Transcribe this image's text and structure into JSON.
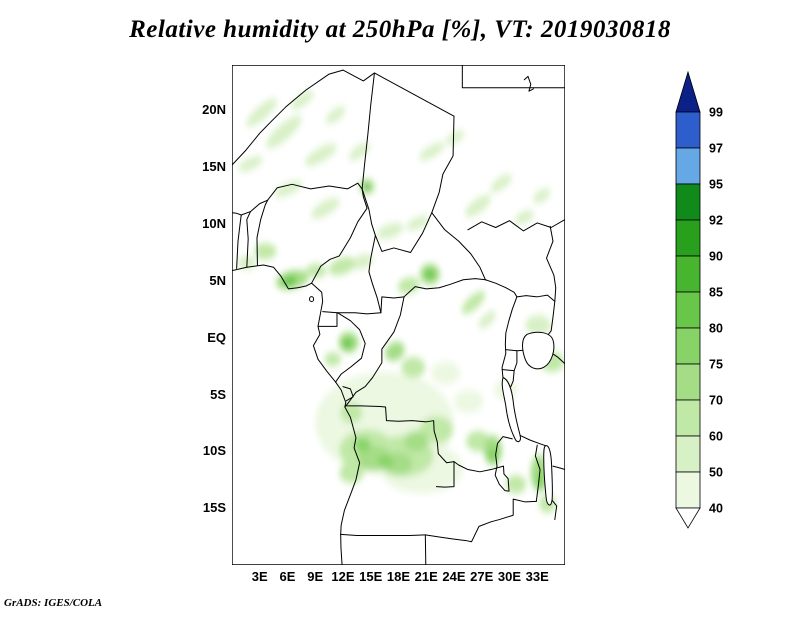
{
  "title": "Relative humidity at 250hPa [%], VT: 2019030818",
  "credit": "GrADS: IGES/COLA",
  "chart_data": {
    "type": "heatmap",
    "subtype": "filled-contour-map",
    "variable": "Relative humidity",
    "pressure_level": "250hPa",
    "units": "%",
    "valid_time": "2019030818",
    "legend_position": "right",
    "lon_range": [
      0,
      36
    ],
    "lat_range": [
      -20,
      24
    ],
    "lon_ticks": [
      {
        "label": "3E",
        "deg": 3
      },
      {
        "label": "6E",
        "deg": 6
      },
      {
        "label": "9E",
        "deg": 9
      },
      {
        "label": "12E",
        "deg": 12
      },
      {
        "label": "15E",
        "deg": 15
      },
      {
        "label": "18E",
        "deg": 18
      },
      {
        "label": "21E",
        "deg": 21
      },
      {
        "label": "24E",
        "deg": 24
      },
      {
        "label": "27E",
        "deg": 27
      },
      {
        "label": "30E",
        "deg": 30
      },
      {
        "label": "33E",
        "deg": 33
      }
    ],
    "lat_ticks": [
      {
        "label": "20N",
        "deg": 20
      },
      {
        "label": "15N",
        "deg": 15
      },
      {
        "label": "10N",
        "deg": 10
      },
      {
        "label": "5N",
        "deg": 5
      },
      {
        "label": "EQ",
        "deg": 0
      },
      {
        "label": "5S",
        "deg": -5
      },
      {
        "label": "10S",
        "deg": -10
      },
      {
        "label": "15S",
        "deg": -15
      }
    ],
    "contour_levels": [
      40,
      50,
      60,
      70,
      75,
      80,
      85,
      90,
      92,
      95,
      97,
      99
    ],
    "colorbar_labels_top_to_bottom": [
      "99",
      "97",
      "95",
      "92",
      "90",
      "85",
      "80",
      "75",
      "70",
      "60",
      "50",
      "40"
    ],
    "palette_bottom_to_top": [
      "#ffffff",
      "#ecf8e2",
      "#d8f0c6",
      "#c0e8a6",
      "#a4dd86",
      "#88d368",
      "#68c648",
      "#47b52e",
      "#28a01e",
      "#108a1a",
      "#66a7e6",
      "#2e5ecc",
      "#0b2188"
    ],
    "shaded_regions_format": [
      "lon_deg",
      "lat_deg",
      "rx_deg",
      "ry_deg",
      "rotation_deg",
      "min_rh_percent"
    ],
    "shaded_regions": [
      [
        3.2,
        19.8,
        2.0,
        0.6,
        -35,
        50
      ],
      [
        5.6,
        18.1,
        2.3,
        0.7,
        -35,
        50
      ],
      [
        7.6,
        20.9,
        1.4,
        0.5,
        -30,
        50
      ],
      [
        2.0,
        15.3,
        1.4,
        0.5,
        -20,
        50
      ],
      [
        9.6,
        16.1,
        1.9,
        0.6,
        -25,
        50
      ],
      [
        11.2,
        19.6,
        1.2,
        0.5,
        -30,
        50
      ],
      [
        6.1,
        13.1,
        1.6,
        0.5,
        -20,
        50
      ],
      [
        10.1,
        11.4,
        1.7,
        0.6,
        -25,
        50
      ],
      [
        13.8,
        16.4,
        1.3,
        0.5,
        -30,
        50
      ],
      [
        21.6,
        16.4,
        1.5,
        0.5,
        -25,
        50
      ],
      [
        24.1,
        17.6,
        1.1,
        0.45,
        -25,
        50
      ],
      [
        14.6,
        13.3,
        0.9,
        0.7,
        0,
        60
      ],
      [
        14.6,
        13.3,
        0.42,
        0.33,
        0,
        85
      ],
      [
        17.1,
        9.4,
        1.5,
        0.6,
        -15,
        50
      ],
      [
        20.1,
        10.1,
        1.3,
        0.5,
        -20,
        50
      ],
      [
        26.6,
        11.6,
        1.6,
        0.6,
        -30,
        50
      ],
      [
        29.1,
        13.6,
        1.3,
        0.5,
        -30,
        50
      ],
      [
        31.6,
        10.6,
        1.1,
        0.5,
        -20,
        50
      ],
      [
        33.5,
        12.5,
        1.0,
        0.5,
        -25,
        50
      ],
      [
        3.6,
        7.6,
        1.2,
        0.7,
        0,
        60
      ],
      [
        1.6,
        6.6,
        1.0,
        0.6,
        0,
        50
      ],
      [
        6.5,
        5.1,
        1.8,
        0.8,
        -10,
        70
      ],
      [
        6.2,
        5.0,
        0.8,
        0.45,
        -10,
        80
      ],
      [
        9.1,
        5.9,
        1.1,
        0.6,
        0,
        60
      ],
      [
        11.9,
        6.3,
        1.5,
        0.7,
        -15,
        60
      ],
      [
        14.1,
        6.7,
        1.2,
        0.6,
        -15,
        50
      ],
      [
        19.1,
        4.6,
        1.2,
        0.7,
        -10,
        60
      ],
      [
        21.4,
        5.6,
        1.1,
        0.9,
        0,
        70
      ],
      [
        21.4,
        5.6,
        0.55,
        0.45,
        0,
        80
      ],
      [
        26.1,
        3.1,
        1.5,
        0.6,
        -35,
        60
      ],
      [
        27.6,
        1.6,
        1.1,
        0.5,
        -35,
        50
      ],
      [
        12.6,
        -0.4,
        1.1,
        0.9,
        0,
        70
      ],
      [
        12.5,
        -0.5,
        0.55,
        0.45,
        0,
        80
      ],
      [
        10.9,
        -1.9,
        0.9,
        0.6,
        0,
        60
      ],
      [
        17.6,
        -1.2,
        1.1,
        0.8,
        -20,
        70
      ],
      [
        19.6,
        -2.6,
        1.3,
        0.9,
        0,
        60
      ],
      [
        33.1,
        1.1,
        1.4,
        0.9,
        0,
        50
      ],
      [
        34.6,
        -2.1,
        1.3,
        0.9,
        0,
        60
      ],
      [
        29.6,
        -4.6,
        1.3,
        0.9,
        0,
        40
      ],
      [
        23.1,
        -3.1,
        1.6,
        1.0,
        0,
        40
      ],
      [
        16.5,
        -7.5,
        7.5,
        4.5,
        0,
        40
      ],
      [
        20.5,
        -11.5,
        4.5,
        2.2,
        0,
        40
      ],
      [
        25.6,
        -5.6,
        1.6,
        1.0,
        0,
        40
      ],
      [
        14.6,
        -9.9,
        3.0,
        1.8,
        0,
        60
      ],
      [
        18.6,
        -10.4,
        3.2,
        1.8,
        0,
        60
      ],
      [
        12.9,
        -6.6,
        1.2,
        0.9,
        0,
        60
      ],
      [
        15.4,
        -10.6,
        1.8,
        1.1,
        0,
        70
      ],
      [
        17.9,
        -11.1,
        1.6,
        1.0,
        0,
        70
      ],
      [
        14.1,
        -9.4,
        0.9,
        0.6,
        0,
        75
      ],
      [
        16.6,
        -10.9,
        0.85,
        0.55,
        0,
        75
      ],
      [
        19.9,
        -9.1,
        1.3,
        0.9,
        0,
        70
      ],
      [
        22.1,
        -8.1,
        1.8,
        1.2,
        0,
        60
      ],
      [
        12.9,
        -11.9,
        1.3,
        0.9,
        0,
        60
      ],
      [
        26.6,
        -9.1,
        1.3,
        0.9,
        0,
        60
      ],
      [
        28.2,
        -9.9,
        1.0,
        1.3,
        0,
        70
      ],
      [
        28.2,
        -10.3,
        0.55,
        0.7,
        0,
        75
      ],
      [
        30.7,
        -12.9,
        1.1,
        0.8,
        0,
        60
      ],
      [
        33.2,
        -11.9,
        0.9,
        1.6,
        0,
        70
      ],
      [
        33.4,
        -12.6,
        0.5,
        0.9,
        0,
        75
      ],
      [
        34.1,
        -14.6,
        0.9,
        0.8,
        0,
        60
      ]
    ]
  }
}
